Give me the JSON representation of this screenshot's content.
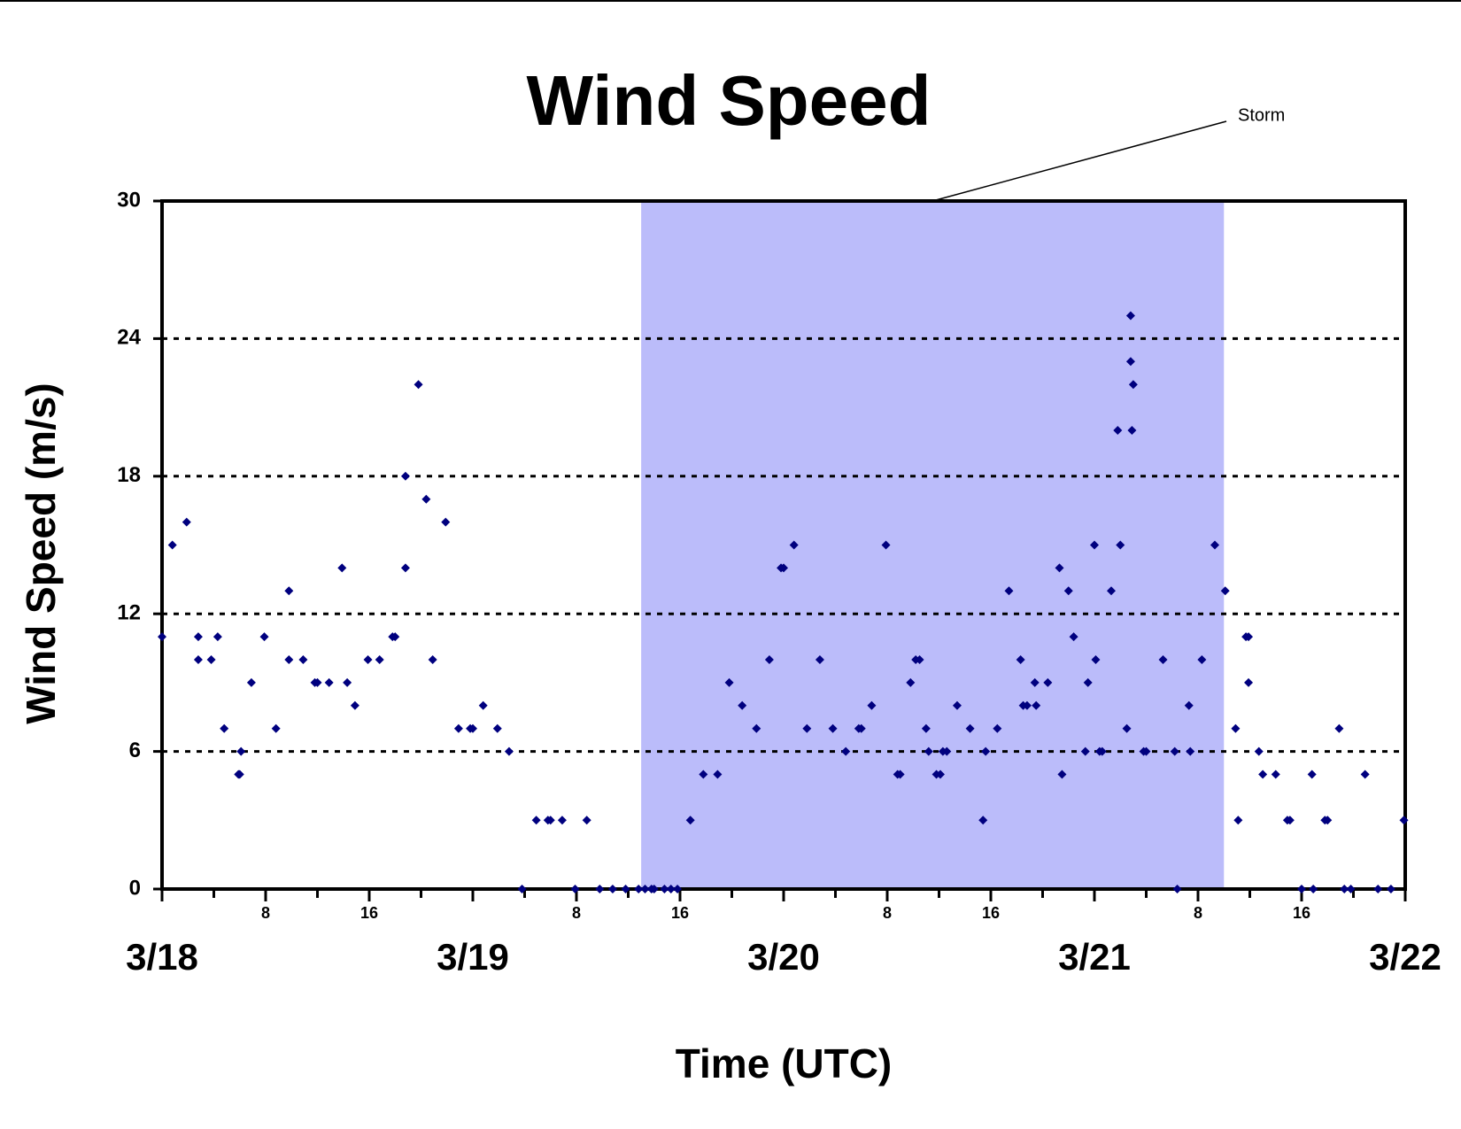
{
  "chart_data": {
    "type": "scatter",
    "title": "Wind Speed",
    "x_label": "Time (UTC)",
    "y_label": "Wind Speed (m/s)",
    "color": "#00007f",
    "x": [
      0,
      0.8,
      1.9,
      2.8,
      2.8,
      3.8,
      4.3,
      4.8,
      5.9,
      6,
      6.1,
      6.9,
      7.9,
      8.8,
      9.8,
      9.8,
      10.9,
      11.8,
      12,
      12.9,
      13.9,
      14.3,
      14.9,
      15.9,
      16.8,
      17.8,
      18,
      18.8,
      18.8,
      19.8,
      20.4,
      20.9,
      21.9,
      22.9,
      23.8,
      24,
      24.8,
      25.9,
      26.8,
      27.8,
      28.9,
      29.8,
      30,
      30.9,
      31.9,
      32.8,
      33.8,
      34.8,
      35.8,
      36.8,
      37.3,
      37.8,
      38,
      38.8,
      39.3,
      39.8,
      40.8,
      41.8,
      42.9,
      43.8,
      44.8,
      45.9,
      46.9,
      47.8,
      48,
      48.8,
      49.8,
      50.8,
      51.8,
      52.8,
      53.8,
      54,
      54.8,
      55.9,
      56.8,
      57,
      57.8,
      58.2,
      58.5,
      59,
      59.2,
      59.8,
      60.1,
      60.3,
      60.6,
      61.4,
      62.4,
      63.4,
      63.6,
      64.5,
      65.4,
      66.3,
      66.5,
      66.8,
      67.4,
      67.5,
      68.4,
      69.3,
      69.5,
      70,
      70.4,
      71.3,
      71.5,
      72,
      72.1,
      72.4,
      72.6,
      73.3,
      73.8,
      74,
      74.5,
      74.8,
      74.8,
      74.9,
      75,
      75.8,
      76,
      77.3,
      78.2,
      78.4,
      79.3,
      79.4,
      80.3,
      81.3,
      82.1,
      82.9,
      83.1,
      83.7,
      83.9,
      83.9,
      84.7,
      85,
      86,
      86.9,
      87.1,
      88,
      88.8,
      88.9,
      89.8,
      90,
      90.9,
      91.3,
      91.8,
      92.9,
      93.9,
      94.9,
      95.9
    ],
    "values": [
      11,
      15,
      16,
      11,
      10,
      10,
      11,
      7,
      5,
      5,
      6,
      9,
      11,
      7,
      13,
      10,
      10,
      9,
      9,
      9,
      14,
      9,
      8,
      10,
      10,
      11,
      11,
      14,
      18,
      22,
      17,
      10,
      16,
      7,
      7,
      7,
      8,
      7,
      6,
      0,
      3,
      3,
      3,
      3,
      0,
      3,
      0,
      0,
      0,
      0,
      0,
      0,
      0,
      0,
      0,
      0,
      3,
      5,
      5,
      9,
      8,
      7,
      10,
      14,
      14,
      15,
      7,
      10,
      7,
      6,
      7,
      7,
      8,
      15,
      5,
      5,
      9,
      10,
      10,
      7,
      6,
      5,
      5,
      6,
      6,
      8,
      7,
      3,
      6,
      7,
      13,
      10,
      8,
      8,
      9,
      8,
      9,
      14,
      5,
      13,
      11,
      6,
      9,
      15,
      10,
      6,
      6,
      13,
      20,
      15,
      7,
      25,
      23,
      20,
      22,
      6,
      6,
      10,
      6,
      0,
      8,
      6,
      10,
      15,
      13,
      7,
      3,
      11,
      11,
      9,
      6,
      5,
      5,
      3,
      3,
      0,
      5,
      0,
      3,
      3,
      7,
      0,
      0,
      5,
      0,
      0,
      3
    ],
    "xlim": [
      0,
      96
    ],
    "xticks": [
      {
        "value": 0,
        "label": "3/18"
      },
      {
        "value": 8,
        "label": "8"
      },
      {
        "value": 16,
        "label": "16"
      },
      {
        "value": 24,
        "label": "3/19"
      },
      {
        "value": 32,
        "label": "8"
      },
      {
        "value": 40,
        "label": "16"
      },
      {
        "value": 48,
        "label": "3/20"
      },
      {
        "value": 56,
        "label": "8"
      },
      {
        "value": 64,
        "label": "16"
      },
      {
        "value": 72,
        "label": "3/21"
      },
      {
        "value": 80,
        "label": "8"
      },
      {
        "value": 88,
        "label": "16"
      },
      {
        "value": 96,
        "label": "3/22"
      }
    ],
    "xminor_ticks": [
      4,
      12,
      20,
      28,
      36,
      44,
      52,
      60,
      68,
      76,
      84,
      92
    ],
    "ylim": [
      0,
      30
    ],
    "yticks": [
      0,
      6,
      12,
      18,
      24,
      30
    ],
    "grid": true,
    "shaded_region": {
      "start": 37,
      "end": 82,
      "label": "Storm",
      "color": "#bbbcfa"
    }
  }
}
